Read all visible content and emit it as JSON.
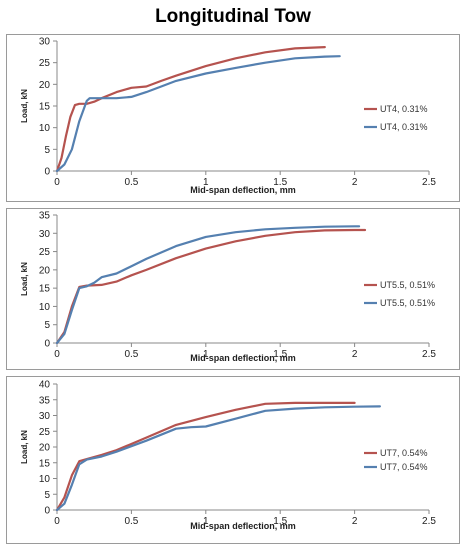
{
  "page_title": "Longitudinal Tow",
  "colors": {
    "series_1": "#b5534f",
    "series_2": "#5580b0"
  },
  "chart_data": [
    {
      "type": "line",
      "title": "",
      "xlabel": "Mid-span deflection, mm",
      "ylabel": "Load, kN",
      "xlim": [
        0,
        2.5
      ],
      "ylim": [
        0,
        30
      ],
      "xticks": [
        0,
        0.5,
        1,
        1.5,
        2,
        2.5
      ],
      "xtick_labels": [
        "0",
        "0.5",
        "1",
        "1.5",
        "2",
        "2.5"
      ],
      "yticks": [
        0,
        5,
        10,
        15,
        20,
        25,
        30
      ],
      "ytick_labels": [
        "0",
        "5",
        "10",
        "15",
        "20",
        "25",
        "30"
      ],
      "legend": "right",
      "grid": false,
      "series": [
        {
          "name": "UT4, 0.31%",
          "color": "#b5534f",
          "x": [
            0,
            0.03,
            0.06,
            0.09,
            0.12,
            0.15,
            0.2,
            0.25,
            0.3,
            0.4,
            0.5,
            0.6,
            0.7,
            0.8,
            1.0,
            1.2,
            1.4,
            1.6,
            1.8
          ],
          "y": [
            0,
            3,
            8,
            12.5,
            15.2,
            15.5,
            15.5,
            16,
            16.8,
            18.2,
            19.2,
            19.5,
            20.8,
            22,
            24.2,
            26,
            27.4,
            28.3,
            28.6
          ]
        },
        {
          "name": "UT4, 0.31%",
          "color": "#5580b0",
          "x": [
            0,
            0.05,
            0.1,
            0.15,
            0.2,
            0.22,
            0.3,
            0.4,
            0.5,
            0.6,
            0.7,
            0.8,
            1.0,
            1.2,
            1.4,
            1.6,
            1.8,
            1.9
          ],
          "y": [
            0,
            1.5,
            5,
            11.5,
            16.2,
            16.8,
            16.8,
            16.8,
            17.1,
            18.2,
            19.5,
            20.8,
            22.5,
            23.8,
            25,
            26,
            26.4,
            26.5
          ]
        }
      ]
    },
    {
      "type": "line",
      "title": "",
      "xlabel": "Mid-span deflection, mm",
      "ylabel": "Load, kN",
      "xlim": [
        0,
        2.5
      ],
      "ylim": [
        0,
        35
      ],
      "xticks": [
        0,
        0.5,
        1,
        1.5,
        2,
        2.5
      ],
      "xtick_labels": [
        "0",
        "0.5",
        "1",
        "1.5",
        "2",
        "2.5"
      ],
      "yticks": [
        0,
        5,
        10,
        15,
        20,
        25,
        30,
        35
      ],
      "ytick_labels": [
        "0",
        "5",
        "10",
        "15",
        "20",
        "25",
        "30",
        "35"
      ],
      "legend": "right",
      "grid": false,
      "series": [
        {
          "name": "UT5.5, 0.51%",
          "color": "#b5534f",
          "x": [
            0,
            0.05,
            0.1,
            0.15,
            0.2,
            0.3,
            0.4,
            0.5,
            0.6,
            0.8,
            1.0,
            1.2,
            1.4,
            1.6,
            1.8,
            2.0,
            2.07
          ],
          "y": [
            0,
            3,
            10,
            15.3,
            15.7,
            15.9,
            16.8,
            18.5,
            20,
            23.2,
            25.8,
            27.8,
            29.3,
            30.3,
            30.8,
            30.9,
            30.9
          ]
        },
        {
          "name": "UT5.5, 0.51%",
          "color": "#5580b0",
          "x": [
            0,
            0.05,
            0.1,
            0.15,
            0.2,
            0.25,
            0.3,
            0.4,
            0.5,
            0.6,
            0.8,
            1.0,
            1.2,
            1.4,
            1.6,
            1.8,
            2.0,
            2.03
          ],
          "y": [
            0,
            2.5,
            9,
            15,
            15.5,
            16.5,
            18,
            19,
            21,
            23,
            26.5,
            29,
            30.3,
            31.1,
            31.5,
            31.8,
            31.9,
            31.9
          ]
        }
      ]
    },
    {
      "type": "line",
      "title": "",
      "xlabel": "Mid-span deflection, mm",
      "ylabel": "Load, kN",
      "xlim": [
        0,
        2.5
      ],
      "ylim": [
        0,
        40
      ],
      "xticks": [
        0,
        0.5,
        1,
        1.5,
        2,
        2.5
      ],
      "xtick_labels": [
        "0",
        "0.5",
        "1",
        "1.5",
        "2",
        "2.5"
      ],
      "yticks": [
        0,
        5,
        10,
        15,
        20,
        25,
        30,
        35,
        40
      ],
      "ytick_labels": [
        "0",
        "5",
        "10",
        "15",
        "20",
        "25",
        "30",
        "35",
        "40"
      ],
      "legend": "right",
      "grid": false,
      "series": [
        {
          "name": "UT7, 0.54%",
          "color": "#b5534f",
          "x": [
            0,
            0.05,
            0.1,
            0.15,
            0.2,
            0.3,
            0.4,
            0.6,
            0.8,
            1.0,
            1.2,
            1.4,
            1.6,
            1.8,
            2.0
          ],
          "y": [
            0,
            4,
            11,
            15.5,
            16.2,
            17.5,
            19,
            23,
            27,
            29.5,
            31.8,
            33.7,
            34,
            34,
            34
          ]
        },
        {
          "name": "UT7, 0.54%",
          "color": "#5580b0",
          "x": [
            0,
            0.05,
            0.1,
            0.15,
            0.2,
            0.3,
            0.4,
            0.6,
            0.8,
            0.9,
            1.0,
            1.2,
            1.4,
            1.6,
            1.8,
            2.0,
            2.17
          ],
          "y": [
            0,
            2,
            8,
            14.5,
            16,
            17,
            18.5,
            22,
            25.8,
            26.3,
            26.5,
            29,
            31.5,
            32.2,
            32.6,
            32.8,
            32.9
          ]
        }
      ]
    }
  ]
}
